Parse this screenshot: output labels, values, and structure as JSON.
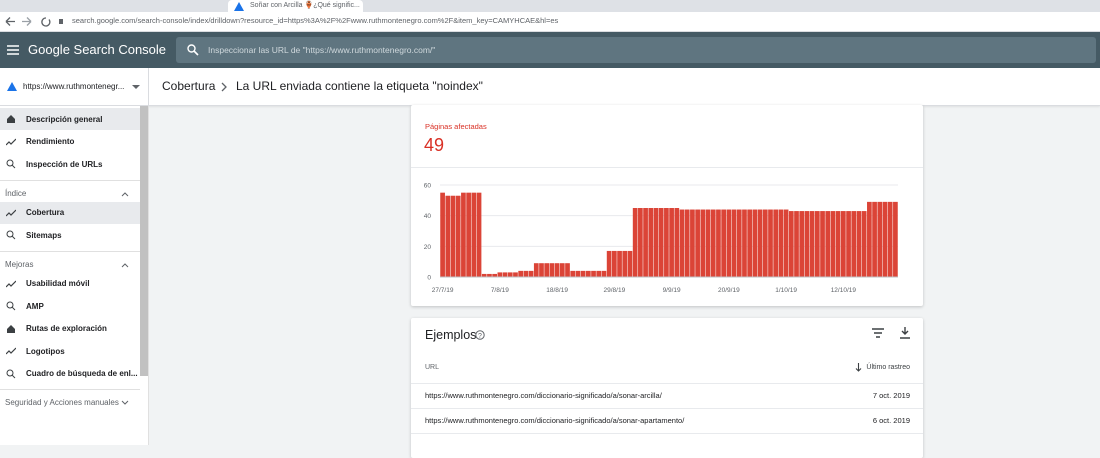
{
  "browser": {
    "tab_title": "Soñar con Arcilla 🏺¿Qué signific...",
    "url": "search.google.com/search-console/index/drilldown?resource_id=https%3A%2F%2Fwww.ruthmontenegro.com%2F&item_key=CAMYHCAE&hl=es"
  },
  "header": {
    "product": "Google Search Console",
    "search_placeholder": "Inspeccionar las URL de \"https://www.ruthmontenegro.com/\""
  },
  "breadcrumb": [
    "Cobertura",
    "La URL enviada contiene la etiqueta \"noindex\""
  ],
  "sidebar": {
    "property": "https://www.ruthmontenegr...",
    "items": [
      "Descripción general",
      "Rendimiento",
      "Inspección de URLs"
    ],
    "groups": [
      {
        "title": "Índice",
        "items": [
          "Cobertura",
          "Sitemaps"
        ]
      },
      {
        "title": "Mejoras",
        "items": [
          "Usabilidad móvil",
          "AMP",
          "Rutas de exploración",
          "Logotipos",
          "Cuadro de búsqueda de enl..."
        ]
      },
      {
        "title": "Seguridad y Acciones manuales"
      }
    ]
  },
  "metric": {
    "label": "Páginas afectadas",
    "value": 49
  },
  "chart_data": {
    "type": "bar",
    "color": "#db4437",
    "categories": [
      "27/7/19",
      null,
      null,
      null,
      null,
      null,
      null,
      null,
      null,
      null,
      null,
      "7/8/19",
      null,
      null,
      null,
      null,
      null,
      null,
      null,
      null,
      null,
      null,
      "18/8/19",
      null,
      null,
      null,
      null,
      null,
      null,
      null,
      null,
      null,
      null,
      "29/8/19",
      null,
      null,
      null,
      null,
      null,
      null,
      null,
      null,
      null,
      null,
      "9/9/19",
      null,
      null,
      null,
      null,
      null,
      null,
      null,
      null,
      null,
      null,
      "20/9/19",
      null,
      null,
      null,
      null,
      null,
      null,
      null,
      null,
      null,
      null,
      "1/10/19",
      null,
      null,
      null,
      null,
      null,
      null,
      null,
      null,
      null,
      null,
      "12/10/19",
      null,
      null,
      null,
      null,
      null,
      null,
      null,
      null,
      null,
      null
    ],
    "values": [
      55,
      53,
      53,
      53,
      55,
      55,
      55,
      55,
      2,
      2,
      2,
      3,
      3,
      3,
      3,
      4,
      4,
      4,
      9,
      9,
      9,
      9,
      9,
      9,
      9,
      4,
      4,
      4,
      4,
      4,
      4,
      4,
      17,
      17,
      17,
      17,
      17,
      45,
      45,
      45,
      45,
      45,
      45,
      45,
      45,
      45,
      44,
      44,
      44,
      44,
      44,
      44,
      44,
      44,
      44,
      44,
      44,
      44,
      44,
      44,
      44,
      44,
      44,
      44,
      44,
      44,
      44,
      43,
      43,
      43,
      43,
      43,
      43,
      43,
      43,
      43,
      43,
      43,
      43,
      43,
      43,
      43,
      49,
      49,
      49,
      49,
      49,
      49
    ],
    "ylim": [
      0,
      60
    ],
    "yticks": [
      0,
      20,
      40,
      60
    ],
    "grid": true
  },
  "examples": {
    "title": "Ejemplos",
    "columns": [
      "URL",
      "Último rastreo"
    ],
    "rows": [
      [
        "https://www.ruthmontenegro.com/diccionario-significado/a/sonar-arcilla/",
        "7 oct. 2019"
      ],
      [
        "https://www.ruthmontenegro.com/diccionario-significado/a/sonar-apartamento/",
        "6 oct. 2019"
      ]
    ]
  }
}
